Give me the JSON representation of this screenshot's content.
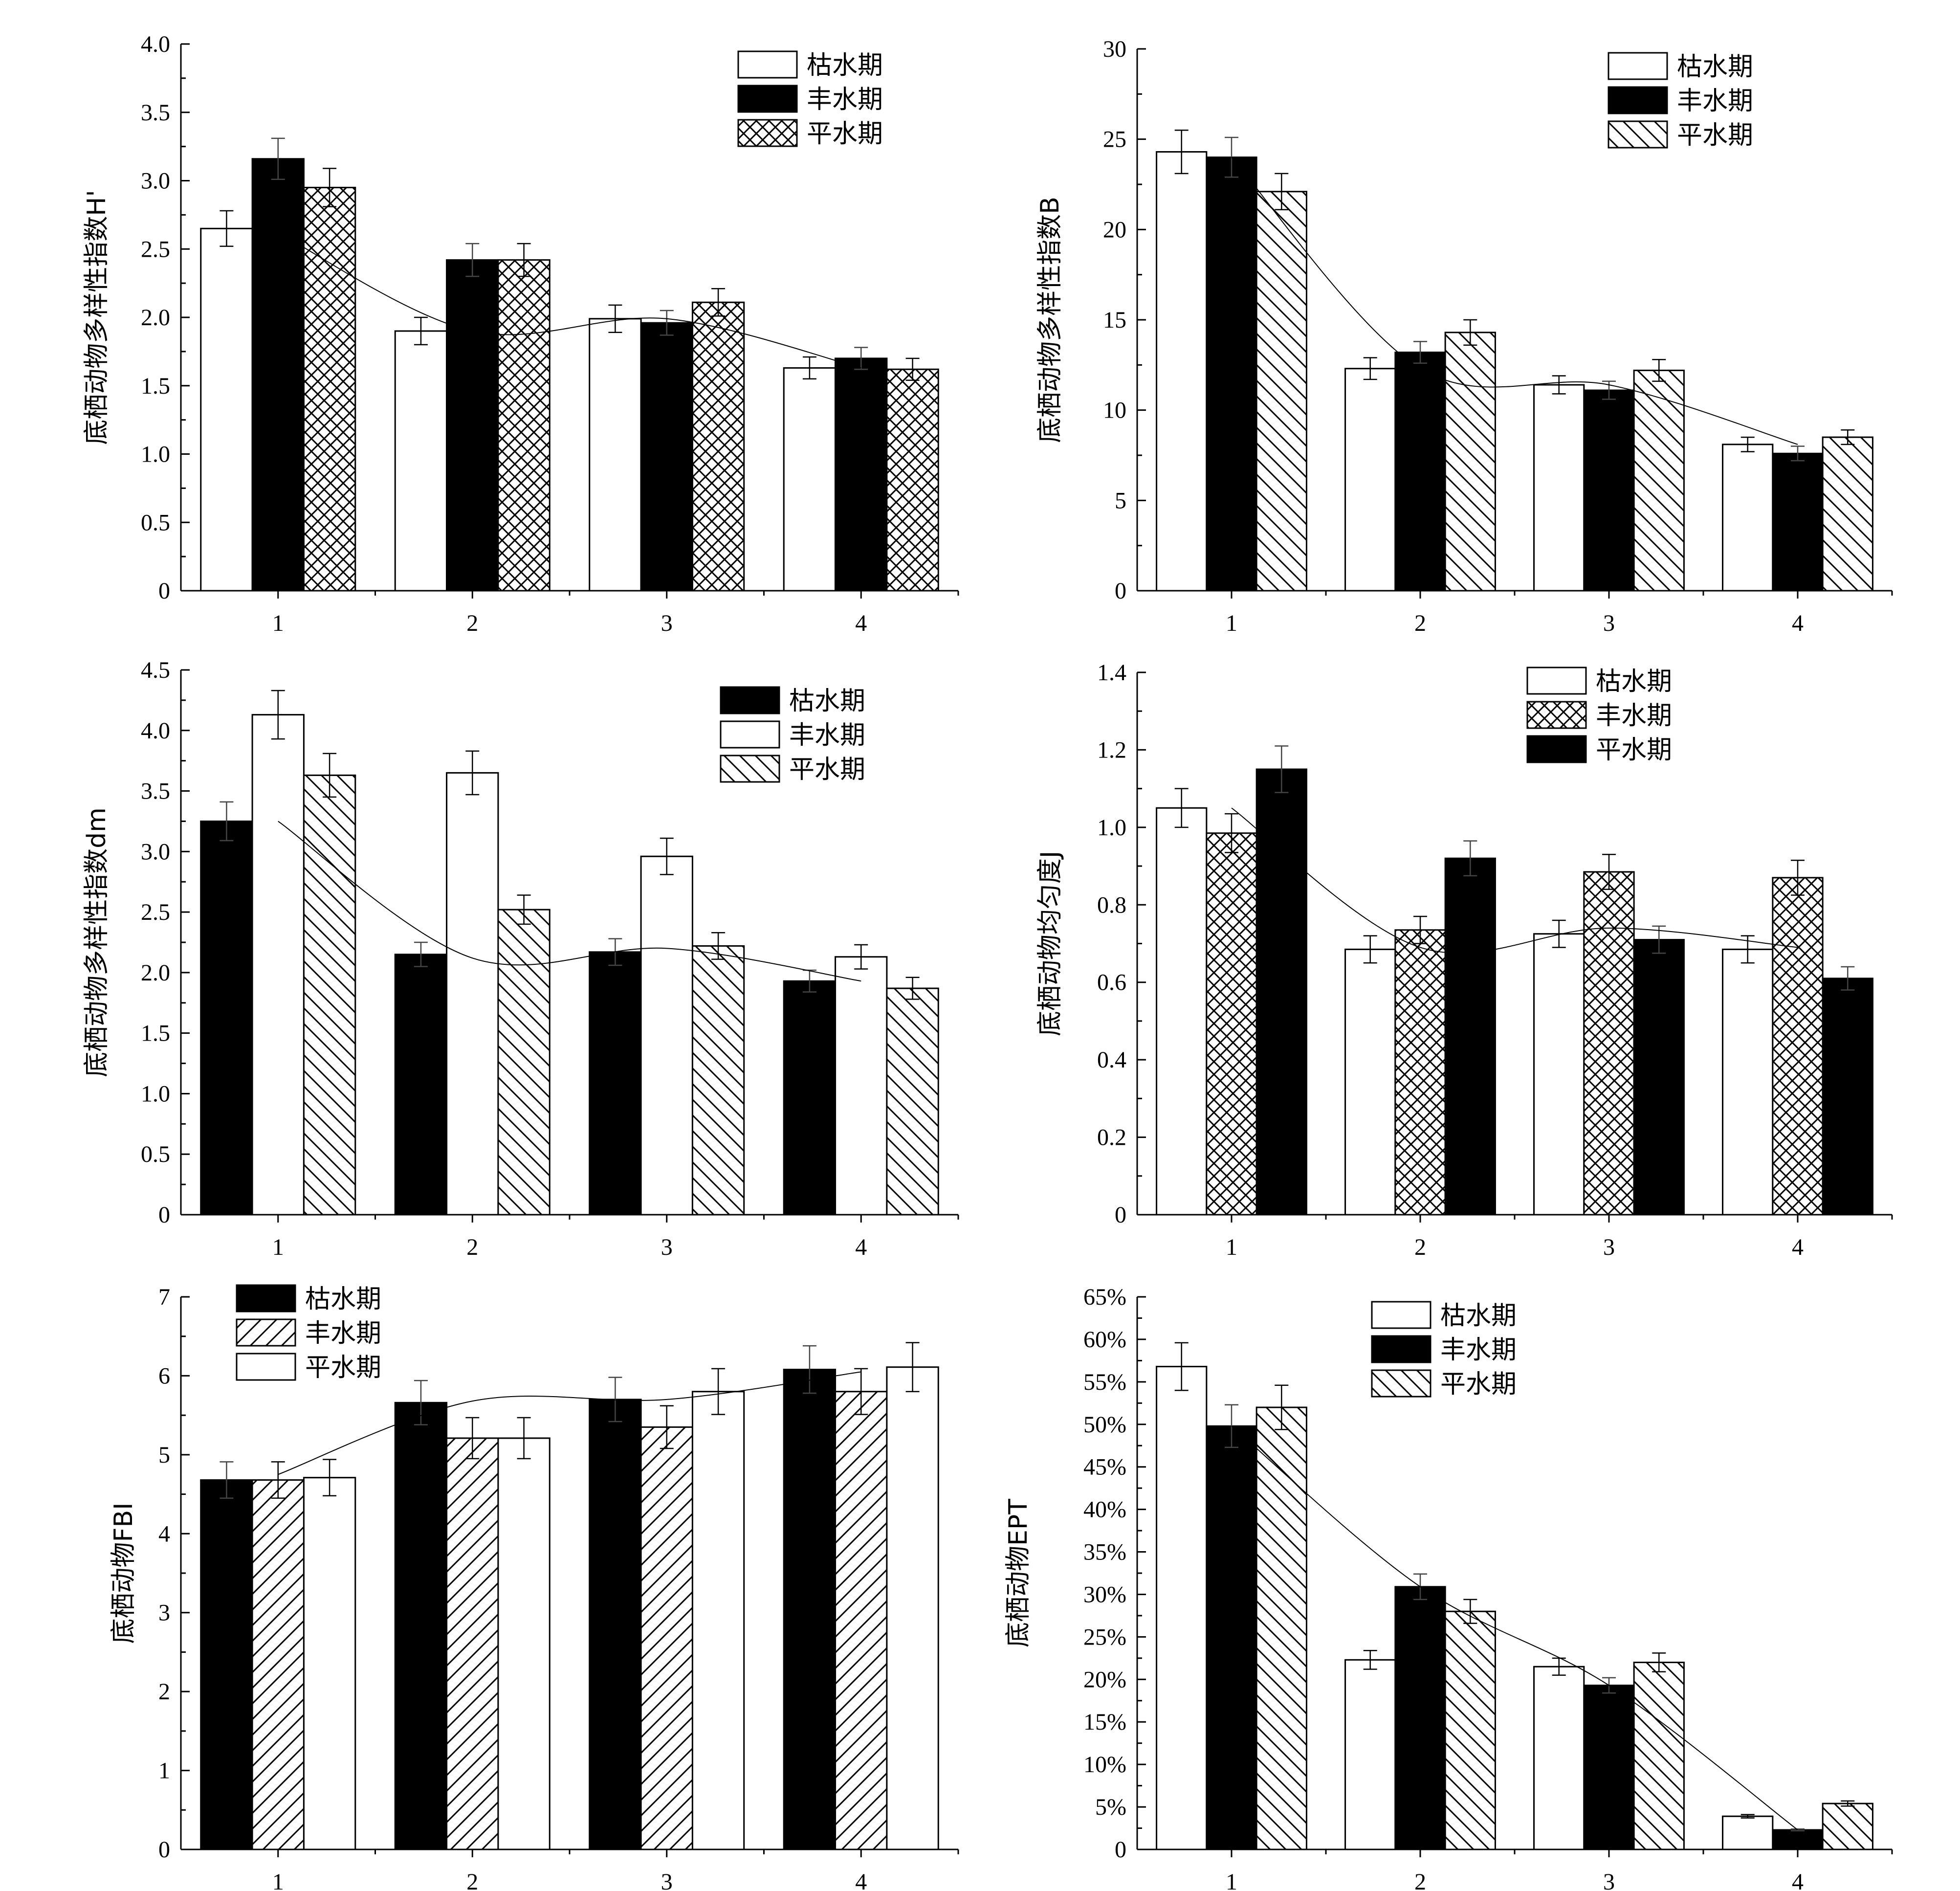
{
  "chart_data": [
    {
      "type": "bar",
      "categories": [
        "1",
        "2",
        "3",
        "4"
      ],
      "series": [
        {
          "name": "枯水期",
          "values": [
            2.65,
            1.9,
            1.99,
            1.63
          ],
          "errors": [
            0.13,
            0.1,
            0.1,
            0.08
          ],
          "pattern": "white"
        },
        {
          "name": "丰水期",
          "values": [
            3.16,
            2.42,
            1.96,
            1.7
          ],
          "errors": [
            0.15,
            0.12,
            0.09,
            0.08
          ],
          "pattern": "black"
        },
        {
          "name": "平水期",
          "values": [
            2.95,
            2.42,
            2.11,
            1.62
          ],
          "errors": [
            0.14,
            0.12,
            0.1,
            0.08
          ],
          "pattern": "crosshatch"
        }
      ],
      "trend": [
        2.62,
        1.9,
        1.99,
        1.63
      ],
      "ylabel": "底栖动物多样性指数H'",
      "ylim": [
        0,
        4.0
      ],
      "yticks": [
        "0",
        "0.5",
        "1.0",
        "1.5",
        "2.0",
        "2.5",
        "3.0",
        "3.5",
        "4.0"
      ],
      "legend_position": "top-right"
    },
    {
      "type": "bar",
      "categories": [
        "1",
        "2",
        "3",
        "4"
      ],
      "series": [
        {
          "name": "枯水期",
          "values": [
            24.3,
            12.3,
            11.4,
            8.1
          ],
          "errors": [
            1.2,
            0.6,
            0.5,
            0.4
          ],
          "pattern": "white"
        },
        {
          "name": "丰水期",
          "values": [
            24.0,
            13.2,
            11.1,
            7.6
          ],
          "errors": [
            1.1,
            0.6,
            0.5,
            0.4
          ],
          "pattern": "black"
        },
        {
          "name": "平水期",
          "values": [
            22.1,
            14.3,
            12.2,
            8.5
          ],
          "errors": [
            1.0,
            0.7,
            0.6,
            0.4
          ],
          "pattern": "hatch-back"
        }
      ],
      "trend": [
        24.0,
        12.3,
        11.4,
        8.1
      ],
      "ylabel": "底栖动物多样性指数B",
      "ylim": [
        0,
        30
      ],
      "yticks": [
        "0",
        "5",
        "10",
        "15",
        "20",
        "25",
        "30"
      ],
      "legend_position": "top-right"
    },
    {
      "type": "bar",
      "categories": [
        "1",
        "2",
        "3",
        "4"
      ],
      "series": [
        {
          "name": "枯水期",
          "values": [
            3.25,
            2.15,
            2.17,
            1.93
          ],
          "errors": [
            0.16,
            0.1,
            0.11,
            0.09
          ],
          "pattern": "black"
        },
        {
          "name": "丰水期",
          "values": [
            4.13,
            3.65,
            2.96,
            2.13
          ],
          "errors": [
            0.2,
            0.18,
            0.15,
            0.1
          ],
          "pattern": "white"
        },
        {
          "name": "平水期",
          "values": [
            3.63,
            2.52,
            2.22,
            1.87
          ],
          "errors": [
            0.18,
            0.12,
            0.11,
            0.09
          ],
          "pattern": "hatch-back"
        }
      ],
      "trend": [
        3.25,
        2.12,
        2.2,
        1.93
      ],
      "ylabel": "底栖动物多样性指数dm",
      "ylim": [
        0,
        4.5
      ],
      "yticks": [
        "0",
        "0.5",
        "1.0",
        "1.5",
        "2.0",
        "2.5",
        "3.0",
        "3.5",
        "4.0",
        "4.5"
      ],
      "legend_position": "top-right"
    },
    {
      "type": "bar",
      "categories": [
        "1",
        "2",
        "3",
        "4"
      ],
      "series": [
        {
          "name": "枯水期",
          "values": [
            1.05,
            0.685,
            0.725,
            0.685
          ],
          "errors": [
            0.05,
            0.035,
            0.035,
            0.035
          ],
          "pattern": "white"
        },
        {
          "name": "丰水期",
          "values": [
            0.985,
            0.735,
            0.885,
            0.87
          ],
          "errors": [
            0.05,
            0.035,
            0.045,
            0.045
          ],
          "pattern": "crosshatch"
        },
        {
          "name": "平水期",
          "values": [
            1.15,
            0.92,
            0.71,
            0.61
          ],
          "errors": [
            0.06,
            0.045,
            0.035,
            0.03
          ],
          "pattern": "black"
        }
      ],
      "trend": [
        1.05,
        0.69,
        0.74,
        0.69
      ],
      "ylabel": "底栖动物均匀度J",
      "ylim": [
        0,
        1.4
      ],
      "yticks": [
        "0",
        "0.2",
        "0.4",
        "0.6",
        "0.8",
        "1.0",
        "1.2",
        "1.4"
      ],
      "legend_position": "top-right"
    },
    {
      "type": "bar",
      "categories": [
        "1",
        "2",
        "3",
        "4"
      ],
      "series": [
        {
          "name": "枯水期",
          "values": [
            4.68,
            5.66,
            5.7,
            6.08
          ],
          "errors": [
            0.23,
            0.28,
            0.28,
            0.3
          ],
          "pattern": "black"
        },
        {
          "name": "丰水期",
          "values": [
            4.68,
            5.21,
            5.35,
            5.8
          ],
          "errors": [
            0.23,
            0.26,
            0.27,
            0.29
          ],
          "pattern": "hatch-fwd"
        },
        {
          "name": "平水期",
          "values": [
            4.71,
            5.21,
            5.8,
            6.11
          ],
          "errors": [
            0.23,
            0.26,
            0.29,
            0.31
          ],
          "pattern": "white"
        }
      ],
      "trend": [
        4.75,
        5.68,
        5.7,
        6.05
      ],
      "ylabel": "底栖动物FBI",
      "ylim": [
        0,
        7
      ],
      "yticks": [
        "0",
        "1",
        "2",
        "3",
        "4",
        "5",
        "6",
        "7"
      ],
      "legend_position": "top-left"
    },
    {
      "type": "bar",
      "categories": [
        "1",
        "2",
        "3",
        "4"
      ],
      "series": [
        {
          "name": "枯水期",
          "values": [
            56.8,
            22.3,
            21.5,
            3.9
          ],
          "errors": [
            2.8,
            1.1,
            1.0,
            0.2
          ],
          "pattern": "white"
        },
        {
          "name": "丰水期",
          "values": [
            49.8,
            30.9,
            19.3,
            2.3
          ],
          "errors": [
            2.5,
            1.5,
            0.9,
            0.1
          ],
          "pattern": "black"
        },
        {
          "name": "平水期",
          "values": [
            52.0,
            28.0,
            22.0,
            5.4
          ],
          "errors": [
            2.6,
            1.4,
            1.1,
            0.3
          ],
          "pattern": "hatch-back"
        }
      ],
      "trend": [
        49.8,
        30.9,
        19.3,
        2.3
      ],
      "ylabel": "底栖动物EPT",
      "ylim": [
        0,
        65
      ],
      "yticks": [
        "0",
        "5%",
        "10%",
        "15%",
        "20%",
        "25%",
        "30%",
        "35%",
        "40%",
        "45%",
        "50%",
        "55%",
        "60%",
        "65%"
      ],
      "legend_position": "top-center"
    }
  ]
}
